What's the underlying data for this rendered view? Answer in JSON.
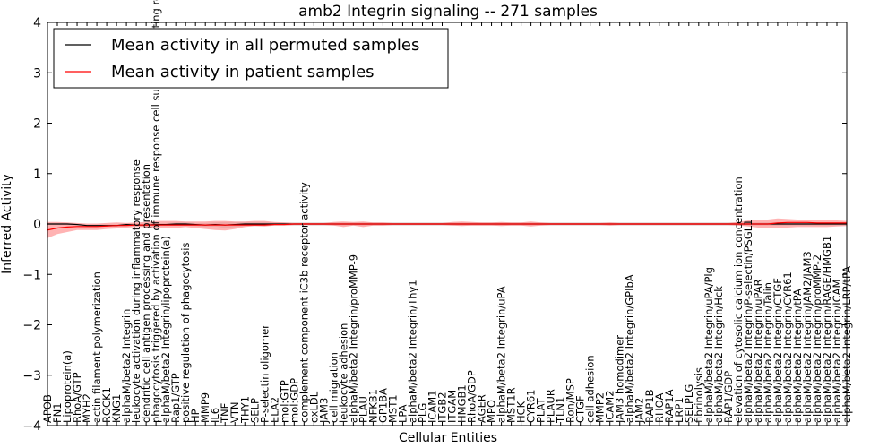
{
  "chart_data": {
    "type": "line",
    "title": "amb2 Integrin signaling -- 271 samples",
    "xlabel": "Cellular Entities",
    "ylabel": "Inferred Activity",
    "ylim": [
      -4,
      4
    ],
    "yticks": [
      -4,
      -3,
      -2,
      -1,
      0,
      1,
      2,
      3,
      4
    ],
    "grid": false,
    "legend_position": "top-left",
    "categories": [
      "APOB",
      "FN1",
      "Lipoprotein(a)",
      "RhoA/GTP",
      "MYH2",
      "actin filament polymerization",
      "ROCK1",
      "KNG1",
      "alphaM/beta2 Integrin",
      "leukocyte activation during inflammatory response",
      "dendritic cell antigen processing and presentation",
      "phagocytosis triggered by activation of immune response cell surface activating receptor",
      "alphaM/beta2 Integrin/lipoprotein(a)",
      "Rap1/GTP",
      "positive regulation of phagocytosis",
      "HP",
      "MMP9",
      "IL6",
      "TNF",
      "VTN",
      "THY1",
      "SELP",
      "P-selectin oligomer",
      "ELA2",
      "mol:GTP",
      "mol:GDP",
      "complement component iC3b receptor activity",
      "oxLDL",
      "JAM3",
      "cell migration",
      "leukocyte adhesion",
      "alphaM/beta2 Integrin/proMMP-9",
      "PLAU",
      "NFKB1",
      "GP1BA",
      "MST1",
      "LPA",
      "alphaM/beta2 Integrin/Thy1",
      "PLG",
      "ICAM1",
      "ITGB2",
      "ITGAM",
      "HMGB1",
      "RhoA/GDP",
      "AGER",
      "MPO",
      "alphaM/beta2 Integrin/uPA",
      "MST1R",
      "HCK",
      "CYR61",
      "PLAT",
      "PLAUR",
      "TLN1",
      "Ron/MSP",
      "CTGF",
      "cell adhesion",
      "MMP2",
      "ICAM2",
      "JAM3 homodimer",
      "alphaM/beta2 Integrin/GPIbA",
      "JAM2",
      "RAP1B",
      "RHOA",
      "RAP1A",
      "LRP1",
      "SELPLG",
      "fibrinolysis",
      "alphaM/beta2 Integrin/uPA/Plg",
      "alphaM/beta2 Integrin/Hck",
      "RAP1/GDP",
      "elevation of cytosolic calcium ion concentration",
      "alphaM/beta2 Integrin/P-selectin/PSGL1",
      "alphaM/beta2 Integrin/uPAR",
      "alphaM/beta2 Integrin/Talin",
      "alphaM/beta2 Integrin/CTGF",
      "alphaM/beta2 Integrin/CYR61",
      "alphaM/beta2 Integrin/tPA",
      "alphaM/beta2 Integrin/JAM2/JAM3",
      "alphaM/beta2 Integrin/proMMP-2",
      "alphaM/beta2 Integrin/RAGE/HMGB1",
      "alphaM/beta2 Integrin/ICAM",
      "alphaM/beta2 Integrin/LRP/tPA"
    ],
    "series": [
      {
        "name": "Mean activity in all permuted samples",
        "color": "#000000",
        "values": [
          0.0,
          0.0,
          0.0,
          -0.01,
          -0.03,
          -0.03,
          -0.03,
          -0.03,
          -0.01,
          -0.02,
          -0.02,
          -0.01,
          -0.01,
          0.0,
          0.0,
          -0.01,
          -0.02,
          -0.01,
          -0.02,
          -0.01,
          0.0,
          0.0,
          0.0,
          0.0,
          0.0,
          0.0,
          0.0,
          0.0,
          0.0,
          0.0,
          0.0,
          0.0,
          0.0,
          0.0,
          0.0,
          0.0,
          0.0,
          0.0,
          0.0,
          0.0,
          0.0,
          0.0,
          0.0,
          0.0,
          0.0,
          0.0,
          0.0,
          0.0,
          0.0,
          0.0,
          0.0,
          0.0,
          0.0,
          0.0,
          0.0,
          0.0,
          0.0,
          0.0,
          0.0,
          0.0,
          0.0,
          0.0,
          0.0,
          0.0,
          0.0,
          0.0,
          0.0,
          0.0,
          0.0,
          0.0,
          0.0,
          0.0,
          0.0,
          0.0,
          0.0,
          0.0,
          0.0,
          0.0,
          0.0,
          0.0,
          0.0,
          0.0
        ],
        "band_lower": [
          -0.02,
          -0.02,
          -0.02,
          -0.03,
          -0.05,
          -0.05,
          -0.05,
          -0.05,
          -0.04,
          -0.05,
          -0.05,
          -0.04,
          -0.04,
          -0.03,
          -0.03,
          -0.04,
          -0.06,
          -0.05,
          -0.08,
          -0.06,
          -0.04,
          -0.04,
          -0.04,
          -0.03,
          -0.03,
          -0.03,
          -0.03,
          -0.03,
          -0.03,
          -0.03,
          -0.03,
          -0.03,
          -0.03,
          -0.03,
          -0.03,
          -0.03,
          -0.03,
          -0.03,
          -0.03,
          -0.03,
          -0.03,
          -0.03,
          -0.03,
          -0.03,
          -0.03,
          -0.03,
          -0.03,
          -0.03,
          -0.03,
          -0.03,
          -0.03,
          -0.03,
          -0.03,
          -0.03,
          -0.03,
          -0.03,
          -0.03,
          -0.03,
          -0.03,
          -0.03,
          -0.03,
          -0.03,
          -0.03,
          -0.03,
          -0.03,
          -0.03,
          -0.03,
          -0.03,
          -0.03,
          -0.03,
          -0.03,
          -0.03,
          -0.03,
          -0.03,
          -0.03,
          -0.03,
          -0.03,
          -0.03,
          -0.03,
          -0.03,
          -0.03,
          -0.03
        ],
        "band_upper": [
          0.02,
          0.02,
          0.02,
          0.01,
          -0.01,
          -0.01,
          -0.01,
          -0.01,
          0.02,
          0.01,
          0.01,
          0.02,
          0.02,
          0.03,
          0.03,
          0.02,
          0.02,
          0.03,
          0.04,
          0.04,
          0.04,
          0.04,
          0.04,
          0.03,
          0.03,
          0.03,
          0.03,
          0.03,
          0.03,
          0.03,
          0.03,
          0.03,
          0.03,
          0.03,
          0.03,
          0.03,
          0.03,
          0.03,
          0.03,
          0.03,
          0.03,
          0.03,
          0.03,
          0.03,
          0.03,
          0.03,
          0.03,
          0.03,
          0.03,
          0.03,
          0.03,
          0.03,
          0.03,
          0.03,
          0.03,
          0.03,
          0.03,
          0.03,
          0.03,
          0.03,
          0.03,
          0.03,
          0.03,
          0.03,
          0.03,
          0.03,
          0.03,
          0.03,
          0.03,
          0.03,
          0.03,
          0.03,
          0.03,
          0.03,
          0.03,
          0.03,
          0.03,
          0.03,
          0.03,
          0.03,
          0.03,
          0.03
        ]
      },
      {
        "name": "Mean activity in patient samples",
        "color": "#ff0000",
        "band_color": "#ff8080",
        "values": [
          -0.12,
          -0.08,
          -0.06,
          -0.05,
          -0.05,
          -0.05,
          -0.04,
          -0.03,
          -0.03,
          -0.02,
          -0.02,
          -0.02,
          -0.02,
          -0.02,
          -0.02,
          -0.02,
          -0.02,
          -0.02,
          -0.02,
          -0.02,
          -0.02,
          -0.02,
          -0.02,
          -0.01,
          -0.01,
          0.0,
          0.0,
          0.0,
          0.0,
          0.0,
          0.0,
          0.0,
          0.0,
          0.0,
          0.0,
          0.0,
          0.0,
          0.0,
          0.0,
          0.0,
          0.0,
          0.0,
          0.0,
          0.0,
          0.0,
          0.0,
          0.0,
          0.0,
          0.0,
          0.0,
          0.0,
          0.0,
          0.0,
          0.0,
          0.0,
          0.0,
          0.0,
          0.0,
          0.0,
          0.0,
          0.0,
          0.0,
          0.0,
          0.0,
          0.0,
          0.0,
          0.0,
          0.0,
          0.0,
          0.0,
          0.0,
          0.0,
          0.0,
          0.0,
          0.02,
          0.03,
          0.03,
          0.03,
          0.02,
          0.02,
          0.02,
          0.02
        ],
        "band_lower": [
          -0.28,
          -0.2,
          -0.16,
          -0.12,
          -0.12,
          -0.12,
          -0.1,
          -0.09,
          -0.07,
          -0.06,
          -0.06,
          -0.09,
          -0.09,
          -0.08,
          -0.06,
          -0.08,
          -0.1,
          -0.12,
          -0.13,
          -0.1,
          -0.06,
          -0.04,
          -0.05,
          -0.03,
          -0.03,
          -0.02,
          -0.02,
          -0.02,
          -0.02,
          -0.03,
          -0.06,
          -0.03,
          -0.06,
          -0.03,
          -0.03,
          -0.02,
          -0.02,
          -0.02,
          -0.02,
          -0.02,
          -0.02,
          -0.03,
          -0.04,
          -0.03,
          -0.03,
          -0.03,
          -0.04,
          -0.03,
          -0.03,
          -0.05,
          -0.03,
          -0.02,
          -0.02,
          -0.02,
          -0.02,
          -0.02,
          -0.02,
          -0.03,
          -0.02,
          -0.02,
          -0.02,
          -0.02,
          -0.02,
          -0.02,
          -0.02,
          -0.02,
          -0.02,
          -0.02,
          -0.02,
          -0.02,
          -0.03,
          -0.05,
          -0.07,
          -0.07,
          -0.08,
          -0.07,
          -0.06,
          -0.06,
          -0.06,
          -0.06,
          -0.05,
          -0.04
        ],
        "band_upper": [
          0.04,
          0.04,
          0.03,
          0.02,
          0.01,
          0.01,
          0.02,
          0.03,
          0.02,
          0.03,
          0.04,
          0.06,
          0.06,
          0.06,
          0.05,
          0.05,
          0.05,
          0.06,
          0.06,
          0.05,
          0.05,
          0.06,
          0.06,
          0.04,
          0.03,
          0.02,
          0.02,
          0.02,
          0.02,
          0.04,
          0.05,
          0.04,
          0.05,
          0.03,
          0.03,
          0.02,
          0.02,
          0.02,
          0.02,
          0.02,
          0.02,
          0.04,
          0.05,
          0.04,
          0.03,
          0.03,
          0.04,
          0.03,
          0.03,
          0.05,
          0.03,
          0.02,
          0.02,
          0.02,
          0.02,
          0.02,
          0.02,
          0.03,
          0.02,
          0.02,
          0.02,
          0.02,
          0.02,
          0.02,
          0.02,
          0.02,
          0.02,
          0.02,
          0.02,
          0.02,
          0.04,
          0.07,
          0.09,
          0.09,
          0.11,
          0.1,
          0.09,
          0.09,
          0.08,
          0.08,
          0.07,
          0.06
        ]
      }
    ]
  }
}
